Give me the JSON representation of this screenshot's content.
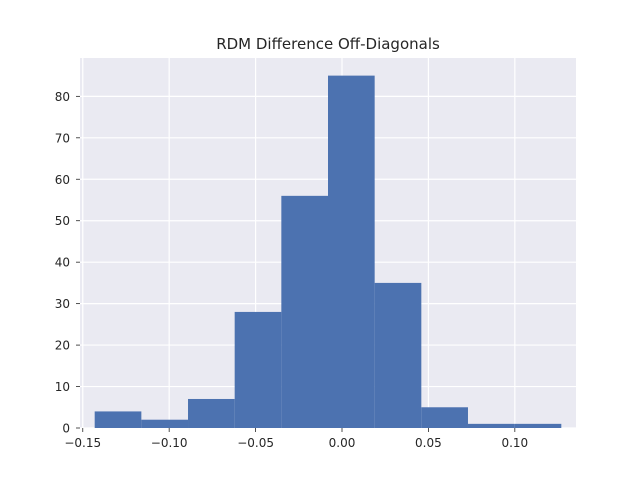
{
  "chart_data": {
    "type": "bar",
    "title": "RDM Difference Off-Diagonals",
    "xlabel": "",
    "ylabel": "",
    "bin_edges": [
      -0.1431,
      -0.1161,
      -0.0891,
      -0.0621,
      -0.0351,
      -0.0081,
      0.0189,
      0.0459,
      0.0729,
      0.0999,
      0.1269
    ],
    "values": [
      4,
      2,
      7,
      28,
      56,
      85,
      35,
      5,
      1,
      1
    ],
    "xlim": [
      -0.1516,
      0.1354
    ],
    "ylim": [
      0,
      89.25
    ],
    "x_ticks": [
      -0.15,
      -0.1,
      -0.05,
      0.0,
      0.05,
      0.1
    ],
    "x_tick_labels": [
      "−0.15",
      "−0.10",
      "−0.05",
      "0.00",
      "0.05",
      "0.10"
    ],
    "y_ticks": [
      0,
      10,
      20,
      30,
      40,
      50,
      60,
      70,
      80
    ],
    "y_tick_labels": [
      "0",
      "10",
      "20",
      "30",
      "40",
      "50",
      "60",
      "70",
      "80"
    ],
    "grid": true,
    "legend": "none",
    "colors": {
      "bar": "#4c72b0",
      "plot_background": "#eaeaf2",
      "grid": "#ffffff",
      "text": "#262626"
    }
  }
}
